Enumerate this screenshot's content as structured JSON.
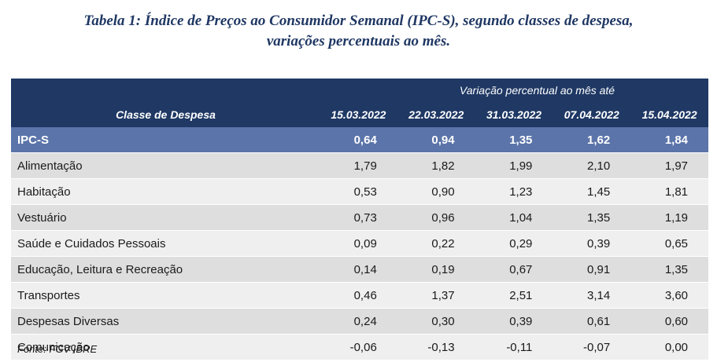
{
  "title": {
    "label": "Tabela 1",
    "line1_rest": ": Índice de Preços ao Consumidor Semanal (IPC-S), segundo classes de despesa,",
    "line2": "variações percentuais ao mês."
  },
  "table": {
    "group_header": "Variação percentual ao mês até",
    "class_header": "Classe de Despesa",
    "dates": [
      "15.03.2022",
      "22.03.2022",
      "31.03.2022",
      "07.04.2022",
      "15.04.2022"
    ],
    "rows": [
      {
        "name": "IPC-S",
        "values": [
          "0,64",
          "0,94",
          "1,35",
          "1,62",
          "1,84"
        ]
      },
      {
        "name": "Alimentação",
        "values": [
          "1,79",
          "1,82",
          "1,99",
          "2,10",
          "1,97"
        ]
      },
      {
        "name": "Habitação",
        "values": [
          "0,53",
          "0,90",
          "1,23",
          "1,45",
          "1,81"
        ]
      },
      {
        "name": "Vestuário",
        "values": [
          "0,73",
          "0,96",
          "1,04",
          "1,35",
          "1,19"
        ]
      },
      {
        "name": "Saúde e Cuidados Pessoais",
        "values": [
          "0,09",
          "0,22",
          "0,29",
          "0,39",
          "0,65"
        ]
      },
      {
        "name": "Educação, Leitura e Recreação",
        "values": [
          "0,14",
          "0,19",
          "0,67",
          "0,91",
          "1,35"
        ]
      },
      {
        "name": "Transportes",
        "values": [
          "0,46",
          "1,37",
          "2,51",
          "3,14",
          "3,60"
        ]
      },
      {
        "name": "Despesas Diversas",
        "values": [
          "0,24",
          "0,30",
          "0,39",
          "0,61",
          "0,60"
        ]
      },
      {
        "name": "Comunicação",
        "values": [
          "-0,06",
          "-0,13",
          "-0,11",
          "-0,07",
          "0,00"
        ]
      }
    ]
  },
  "source": "Fonte: FGV IBRE",
  "colors": {
    "header_bg": "#1f3864",
    "highlight_row_bg": "#5b74a9",
    "row_bg_a": "#dedede",
    "row_bg_b": "#efefef",
    "title_color": "#1f3763"
  }
}
